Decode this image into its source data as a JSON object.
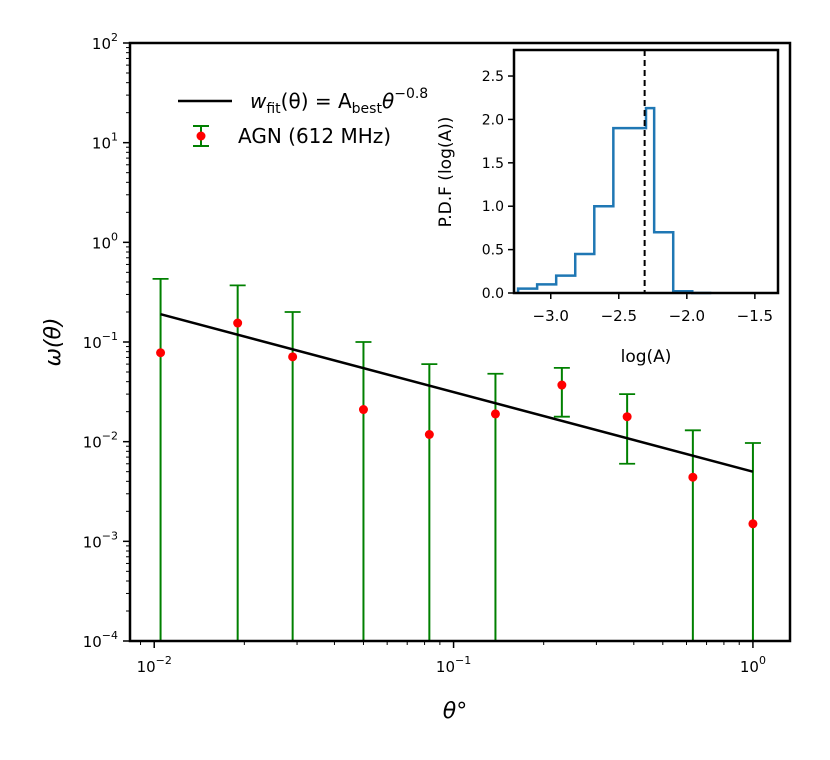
{
  "chart_data": [
    {
      "type": "scatter",
      "name": "main",
      "xscale": "log",
      "yscale": "log",
      "xlim": [
        0.0083,
        1.33
      ],
      "ylim": [
        0.0001,
        100
      ],
      "xlabel": "θ°",
      "ylabel": "ω(θ)",
      "xticks": [
        {
          "value": 0.01,
          "base": "10",
          "exp": "−2"
        },
        {
          "value": 0.1,
          "base": "10",
          "exp": "−1"
        },
        {
          "value": 1,
          "base": "10",
          "exp": "0"
        }
      ],
      "yticks": [
        {
          "value": 0.0001,
          "base": "10",
          "exp": "−4"
        },
        {
          "value": 0.001,
          "base": "10",
          "exp": "−3"
        },
        {
          "value": 0.01,
          "base": "10",
          "exp": "−2"
        },
        {
          "value": 0.1,
          "base": "10",
          "exp": "−1"
        },
        {
          "value": 1,
          "base": "10",
          "exp": "0"
        },
        {
          "value": 10,
          "base": "10",
          "exp": "1"
        },
        {
          "value": 100,
          "base": "10",
          "exp": "2"
        }
      ],
      "series": [
        {
          "name": "AGN (612 MHz)",
          "color": "#ff0000",
          "errcolor": "#008000",
          "points": [
            {
              "x": 0.0105,
              "y": 0.078,
              "ylo": 0.0001,
              "yhi": 0.43
            },
            {
              "x": 0.019,
              "y": 0.155,
              "ylo": 0.0001,
              "yhi": 0.37
            },
            {
              "x": 0.029,
              "y": 0.071,
              "ylo": 0.0001,
              "yhi": 0.2
            },
            {
              "x": 0.05,
              "y": 0.021,
              "ylo": 0.0001,
              "yhi": 0.1
            },
            {
              "x": 0.083,
              "y": 0.0118,
              "ylo": 0.0001,
              "yhi": 0.06
            },
            {
              "x": 0.138,
              "y": 0.019,
              "ylo": 0.0001,
              "yhi": 0.048
            },
            {
              "x": 0.23,
              "y": 0.037,
              "ylo": 0.0178,
              "yhi": 0.055
            },
            {
              "x": 0.38,
              "y": 0.0178,
              "ylo": 0.006,
              "yhi": 0.03
            },
            {
              "x": 0.63,
              "y": 0.0044,
              "ylo": 0.0001,
              "yhi": 0.013
            },
            {
              "x": 1.0,
              "y": 0.0015,
              "ylo": 0.0001,
              "yhi": 0.0097
            }
          ]
        }
      ],
      "fit": {
        "label_main": "w",
        "label_sub1": "fit",
        "label_mid": "(θ) = A",
        "label_sub2": "best",
        "label_theta": "θ",
        "label_exp": "−0.8",
        "color": "#000000",
        "x": [
          0.0105,
          1.0
        ],
        "y": [
          0.19,
          0.005
        ]
      },
      "legend": {
        "position": "upper-left",
        "points_label": "AGN (612 MHz)"
      }
    },
    {
      "type": "step-histogram",
      "name": "inset",
      "xlim": [
        -3.27,
        -1.33
      ],
      "ylim": [
        0,
        2.8
      ],
      "xlabel": "log(A)",
      "ylabel": "P.D.F (log(A))",
      "color": "#1f77b4",
      "xticks": [
        "−3.0",
        "−2.5",
        "−2.0",
        "−1.5"
      ],
      "xtick_values": [
        -3.0,
        -2.5,
        -2.0,
        -1.5
      ],
      "yticks": [
        "0.0",
        "0.5",
        "1.0",
        "1.5",
        "2.0",
        "2.5"
      ],
      "ytick_values": [
        0.0,
        0.5,
        1.0,
        1.5,
        2.0,
        2.5
      ],
      "bin_edges": [
        -3.24,
        -3.1,
        -2.96,
        -2.82,
        -2.68,
        -2.54,
        -2.4,
        -2.3,
        -2.24,
        -2.1,
        -1.96,
        -1.82
      ],
      "values": [
        0.05,
        0.1,
        0.2,
        0.45,
        1.0,
        1.9,
        1.9,
        2.13,
        0.7,
        0.02,
        0.0
      ],
      "best_fit_line": -2.31
    }
  ]
}
